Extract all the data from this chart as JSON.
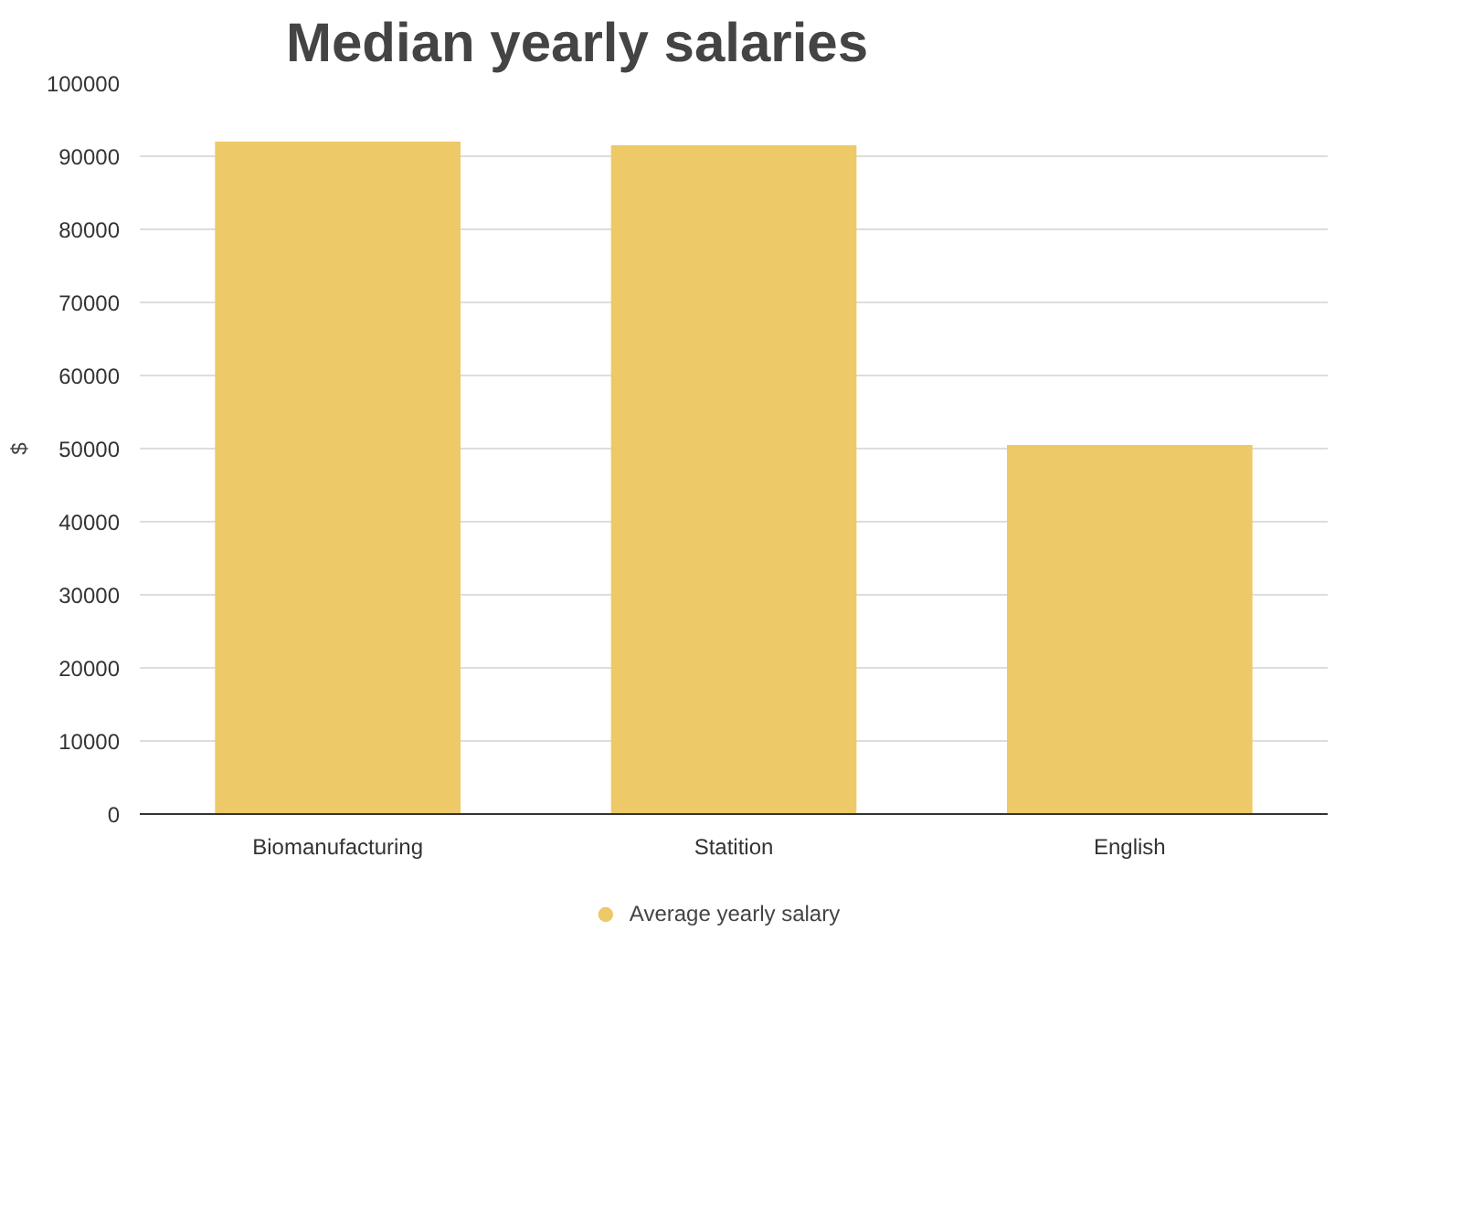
{
  "chart_data": {
    "type": "bar",
    "title": "Median yearly salaries",
    "ylabel": "$",
    "categories": [
      "Biomanufacturing",
      "Statition",
      "English"
    ],
    "series": [
      {
        "name": "Average yearly salary",
        "color": "#edc967",
        "values": [
          92000,
          91500,
          50500
        ]
      }
    ],
    "ylim": [
      0,
      100000
    ],
    "yticks": [
      0,
      10000,
      20000,
      30000,
      40000,
      50000,
      60000,
      70000,
      80000,
      90000,
      100000
    ],
    "grid": "y",
    "legend": "bottom"
  }
}
